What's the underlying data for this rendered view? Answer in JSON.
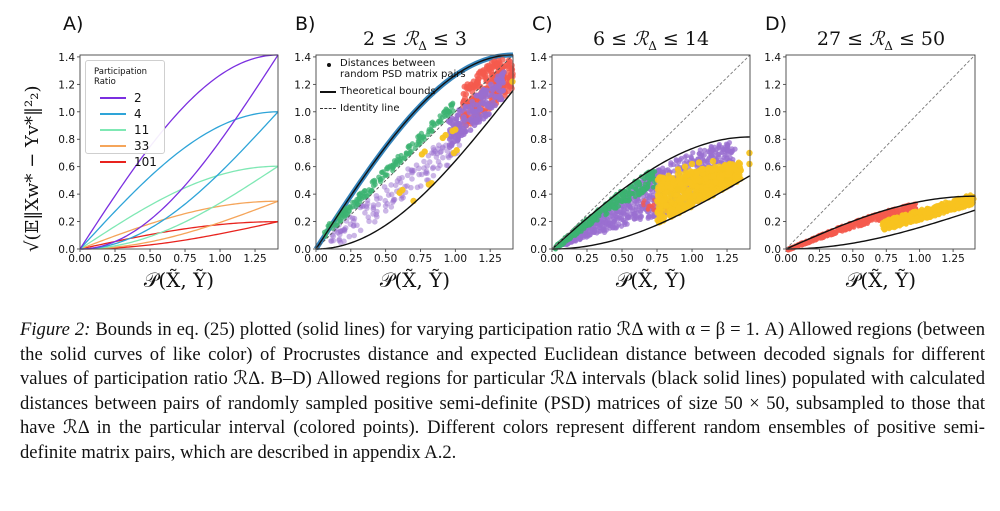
{
  "figure": {
    "panels": [
      {
        "letter": "A)",
        "title": "",
        "xlabel": "𝒫(X̃, Ỹ)",
        "ylabel": "√(𝔼‖Xw* − Yv*‖²₂)"
      },
      {
        "letter": "B)",
        "title_lhs": "2 ≤ ",
        "title_sym": "ℛ",
        "title_sub": "Δ",
        "title_rhs": " ≤ 3",
        "xlabel": "𝒫(X̃, Ỹ)"
      },
      {
        "letter": "C)",
        "title_lhs": "6 ≤ ",
        "title_sym": "ℛ",
        "title_sub": "Δ",
        "title_rhs": " ≤ 14",
        "xlabel": "𝒫(X̃, Ỹ)"
      },
      {
        "letter": "D)",
        "title_lhs": "27 ≤ ",
        "title_sym": "ℛ",
        "title_sub": "Δ",
        "title_rhs": " ≤ 50",
        "xlabel": "𝒫(X̃, Ỹ)"
      }
    ],
    "legendA": {
      "title": "Participation Ratio",
      "entries": [
        {
          "label": "2",
          "color": "#7b2fe0"
        },
        {
          "label": "4",
          "color": "#2ea4d8"
        },
        {
          "label": "11",
          "color": "#7fe8b4"
        },
        {
          "label": "33",
          "color": "#f5a55a"
        },
        {
          "label": "101",
          "color": "#e8231e"
        }
      ]
    },
    "legendB": {
      "points_label_1": "Distances between",
      "points_label_2": "random PSD matrix pairs",
      "bounds_label": "Theoretical bounds",
      "identity_label": "Identity line"
    },
    "ensemble_colors": {
      "purple": "#9a6fd0",
      "green": "#3cb371",
      "gold": "#f7c31f",
      "red": "#f55a4e",
      "blue": "#1f77b4"
    }
  },
  "chart_data": [
    {
      "type": "line",
      "panel": "A",
      "title": "",
      "xlabel": "P(X̃, Ỹ)",
      "ylabel": "sqrt(E||Xw* - Yv*||_2^2)",
      "xlim": [
        0,
        1.414
      ],
      "ylim": [
        0,
        1.414
      ],
      "xticks": [
        "0.00",
        "0.25",
        "0.50",
        "0.75",
        "1.00",
        "1.25"
      ],
      "yticks": [
        "0.0",
        "0.2",
        "0.4",
        "0.6",
        "0.8",
        "1.0",
        "1.2",
        "1.4"
      ],
      "legend_title": "Participation Ratio",
      "legend_position": "top-left",
      "series": [
        {
          "name": "2",
          "R": 2,
          "upper_max": 1.414,
          "lower_max": 1.414
        },
        {
          "name": "4",
          "R": 4,
          "upper_max": 1.0,
          "lower_max": 1.0
        },
        {
          "name": "11",
          "R": 11,
          "upper_max": 0.603,
          "lower_max": 0.603
        },
        {
          "name": "33",
          "R": 33,
          "upper_max": 0.348,
          "lower_max": 0.348
        },
        {
          "name": "101",
          "R": 101,
          "upper_max": 0.199,
          "lower_max": 0.199
        }
      ]
    },
    {
      "type": "scatter",
      "panel": "B",
      "title": "2 ≤ R_Δ ≤ 3",
      "xlabel": "P(X̃, Ỹ)",
      "ylabel": "",
      "xlim": [
        0,
        1.414
      ],
      "ylim": [
        0,
        1.414
      ],
      "xticks": [
        "0.00",
        "0.25",
        "0.50",
        "0.75",
        "1.00",
        "1.25"
      ],
      "yticks": [
        "0.0",
        "0.2",
        "0.4",
        "0.6",
        "0.8",
        "1.0",
        "1.2",
        "1.4"
      ],
      "bounds": {
        "upper_R": 2,
        "lower_R": 3,
        "upper_end": 1.414,
        "lower_end": 1.155
      },
      "identity_line": true,
      "legend_position": "top-left",
      "clusters": [
        {
          "color": "green",
          "region": "near upper bound / identity",
          "x_range": [
            0.05,
            1.0
          ],
          "y_range": [
            0.05,
            1.0
          ]
        },
        {
          "color": "purple",
          "region": "below identity line",
          "x_range": [
            0.1,
            1.3
          ],
          "y_range": [
            0.05,
            1.3
          ]
        },
        {
          "color": "red",
          "region": "upper right",
          "x_range": [
            1.05,
            1.414
          ],
          "y_range": [
            1.05,
            1.4
          ]
        },
        {
          "color": "gold",
          "region": "scattered blobs",
          "x_range": [
            0.55,
            1.414
          ],
          "y_range": [
            0.35,
            1.25
          ]
        },
        {
          "color": "blue",
          "region": "along upper bound",
          "x_range": [
            0,
            1.414
          ],
          "y_range": [
            0,
            1.414
          ]
        }
      ]
    },
    {
      "type": "scatter",
      "panel": "C",
      "title": "6 ≤ R_Δ ≤ 14",
      "xlabel": "P(X̃, Ỹ)",
      "ylabel": "",
      "xlim": [
        0,
        1.414
      ],
      "ylim": [
        0,
        1.414
      ],
      "xticks": [
        "0.00",
        "0.25",
        "0.50",
        "0.75",
        "1.00",
        "1.25"
      ],
      "yticks": [
        "0.0",
        "0.2",
        "0.4",
        "0.6",
        "0.8",
        "1.0",
        "1.2",
        "1.4"
      ],
      "bounds": {
        "upper_R": 6,
        "lower_R": 14,
        "upper_end": 0.816,
        "lower_end": 0.535
      },
      "identity_line": true,
      "clusters": [
        {
          "color": "green",
          "x_range": [
            0,
            0.75
          ],
          "y_range": [
            0,
            0.5
          ]
        },
        {
          "color": "purple",
          "x_range": [
            0.05,
            1.3
          ],
          "y_range": [
            0.02,
            0.78
          ]
        },
        {
          "color": "gold",
          "x_range": [
            0.75,
            1.414
          ],
          "y_range": [
            0.15,
            0.68
          ]
        },
        {
          "color": "red",
          "x_range": [
            0.6,
            1.3
          ],
          "y_range": [
            0.3,
            0.75
          ]
        }
      ]
    },
    {
      "type": "scatter",
      "panel": "D",
      "title": "27 ≤ R_Δ ≤ 50",
      "xlabel": "P(X̃, Ỹ)",
      "ylabel": "",
      "xlim": [
        0,
        1.414
      ],
      "ylim": [
        0,
        1.414
      ],
      "xticks": [
        "0.00",
        "0.25",
        "0.50",
        "0.75",
        "1.00",
        "1.25"
      ],
      "yticks": [
        "0.0",
        "0.2",
        "0.4",
        "0.6",
        "0.8",
        "1.0",
        "1.2",
        "1.4"
      ],
      "bounds": {
        "upper_R": 27,
        "lower_R": 50,
        "upper_end": 0.385,
        "lower_end": 0.283
      },
      "identity_line": true,
      "clusters": [
        {
          "color": "red",
          "x_range": [
            0,
            1.0
          ],
          "y_range": [
            0,
            0.3
          ]
        },
        {
          "color": "gold",
          "x_range": [
            0.72,
            1.414
          ],
          "y_range": [
            0.14,
            0.37
          ]
        }
      ]
    }
  ],
  "caption": {
    "label": "Figure 2:",
    "text": " Bounds in eq. (25) plotted (solid lines) for varying participation ratio ℛΔ with α = β = 1. A) Allowed regions (between the solid curves of like color) of Procrustes distance and expected Euclidean distance between decoded signals for different values of participation ratio ℛΔ. B–D) Allowed regions for particular ℛΔ intervals (black solid lines) populated with calculated distances between pairs of randomly sampled positive semi-definite (PSD) matrices of size 50 × 50, subsampled to those that have ℛΔ in the particular interval (colored points). Different colors represent different random ensembles of positive semi-definite matrix pairs, which are described in appendix A.2."
  }
}
